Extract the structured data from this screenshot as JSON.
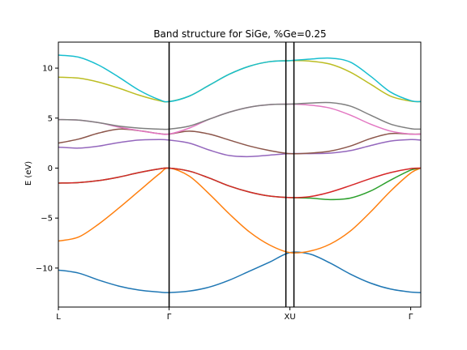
{
  "chart_data": {
    "type": "line",
    "title": "Band structure for SiGe, %Ge=0.25",
    "xlabel": "",
    "ylabel": "E (eV)",
    "ylim": [
      -13.9,
      12.6
    ],
    "yticks": [
      10,
      5,
      0,
      -5,
      -10
    ],
    "ytick_labels": [
      "10",
      "5",
      "0",
      "−5",
      "−10"
    ],
    "x_range": [
      0,
      3.6
    ],
    "kpoints": [
      {
        "label": "L",
        "x": 0
      },
      {
        "label": "Γ",
        "x": 1.1
      },
      {
        "label": "XU",
        "x": 2.3
      },
      {
        "label": "Γ",
        "x": 3.5
      }
    ],
    "vlines": [
      1.1,
      2.26,
      2.34
    ],
    "grid": false,
    "series": [
      {
        "color": "#1f77b4",
        "x": [
          0,
          0.2,
          0.4,
          0.6,
          0.8,
          1.0,
          1.1,
          1.3,
          1.5,
          1.7,
          1.9,
          2.1,
          2.3,
          2.5,
          2.7,
          2.9,
          3.1,
          3.3,
          3.5,
          3.6
        ],
        "y": [
          -10.2,
          -10.5,
          -11.2,
          -11.8,
          -12.2,
          -12.4,
          -12.45,
          -12.3,
          -11.9,
          -11.2,
          -10.3,
          -9.4,
          -8.45,
          -8.6,
          -9.5,
          -10.6,
          -11.5,
          -12.1,
          -12.4,
          -12.45
        ]
      },
      {
        "color": "#ff7f0e",
        "x": [
          0,
          0.2,
          0.4,
          0.6,
          0.8,
          1.0,
          1.1,
          1.3,
          1.5,
          1.7,
          1.9,
          2.1,
          2.3,
          2.5,
          2.7,
          2.9,
          3.1,
          3.3,
          3.5,
          3.6
        ],
        "y": [
          -7.3,
          -6.9,
          -5.6,
          -4.0,
          -2.3,
          -0.6,
          0,
          -0.8,
          -2.6,
          -4.6,
          -6.4,
          -7.7,
          -8.45,
          -8.3,
          -7.6,
          -6.3,
          -4.4,
          -2.3,
          -0.5,
          0
        ]
      },
      {
        "color": "#2ca02c",
        "x": [
          0,
          0.2,
          0.4,
          0.6,
          0.8,
          1.0,
          1.1,
          1.3,
          1.5,
          1.7,
          1.9,
          2.1,
          2.3,
          2.5,
          2.7,
          2.9,
          3.1,
          3.3,
          3.5,
          3.6
        ],
        "y": [
          -1.5,
          -1.45,
          -1.25,
          -0.9,
          -0.45,
          -0.08,
          0,
          -0.3,
          -1.0,
          -1.8,
          -2.4,
          -2.8,
          -2.95,
          -3.0,
          -3.15,
          -3.0,
          -2.3,
          -1.2,
          -0.2,
          0
        ]
      },
      {
        "color": "#d62728",
        "x": [
          0,
          0.2,
          0.4,
          0.6,
          0.8,
          1.0,
          1.1,
          1.3,
          1.5,
          1.7,
          1.9,
          2.1,
          2.3,
          2.5,
          2.7,
          2.9,
          3.1,
          3.3,
          3.5,
          3.6
        ],
        "y": [
          -1.5,
          -1.45,
          -1.25,
          -0.9,
          -0.45,
          -0.08,
          0,
          -0.3,
          -1.0,
          -1.8,
          -2.4,
          -2.8,
          -2.95,
          -2.85,
          -2.4,
          -1.75,
          -1.05,
          -0.45,
          -0.05,
          0
        ]
      },
      {
        "color": "#9467bd",
        "x": [
          0,
          0.2,
          0.4,
          0.6,
          0.8,
          1.0,
          1.1,
          1.3,
          1.5,
          1.7,
          1.9,
          2.1,
          2.3,
          2.5,
          2.7,
          2.9,
          3.1,
          3.3,
          3.5,
          3.6
        ],
        "y": [
          2.1,
          2.0,
          2.2,
          2.55,
          2.8,
          2.85,
          2.8,
          2.5,
          1.8,
          1.25,
          1.15,
          1.3,
          1.45,
          1.45,
          1.5,
          1.75,
          2.25,
          2.7,
          2.85,
          2.8
        ]
      },
      {
        "color": "#8c564b",
        "x": [
          0,
          0.2,
          0.4,
          0.6,
          0.8,
          1.0,
          1.1,
          1.3,
          1.5,
          1.7,
          1.9,
          2.1,
          2.3,
          2.5,
          2.7,
          2.9,
          3.1,
          3.3,
          3.5,
          3.6
        ],
        "y": [
          2.5,
          2.9,
          3.5,
          3.9,
          3.75,
          3.45,
          3.4,
          3.7,
          3.4,
          2.8,
          2.2,
          1.75,
          1.45,
          1.5,
          1.7,
          2.2,
          2.95,
          3.45,
          3.4,
          3.4
        ]
      },
      {
        "color": "#e377c2",
        "x": [
          0,
          0.2,
          0.4,
          0.6,
          0.8,
          1.0,
          1.1,
          1.3,
          1.5,
          1.7,
          1.9,
          2.1,
          2.3,
          2.5,
          2.7,
          2.9,
          3.1,
          3.3,
          3.5,
          3.6
        ],
        "y": [
          4.85,
          4.8,
          4.55,
          4.1,
          3.75,
          3.45,
          3.4,
          4.0,
          4.9,
          5.6,
          6.1,
          6.35,
          6.4,
          6.3,
          6.0,
          5.3,
          4.4,
          3.7,
          3.4,
          3.4
        ]
      },
      {
        "color": "#7f7f7f",
        "x": [
          0,
          0.2,
          0.4,
          0.6,
          0.8,
          1.0,
          1.1,
          1.3,
          1.5,
          1.7,
          1.9,
          2.1,
          2.3,
          2.5,
          2.7,
          2.9,
          3.1,
          3.3,
          3.5,
          3.6
        ],
        "y": [
          4.85,
          4.8,
          4.55,
          4.2,
          4.0,
          3.9,
          3.9,
          4.2,
          4.9,
          5.6,
          6.1,
          6.35,
          6.4,
          6.5,
          6.55,
          6.2,
          5.3,
          4.4,
          3.95,
          3.9
        ]
      },
      {
        "color": "#bcbd22",
        "x": [
          0,
          0.2,
          0.4,
          0.6,
          0.8,
          1.0,
          1.1,
          1.3,
          1.5,
          1.7,
          1.9,
          2.1,
          2.3,
          2.5,
          2.7,
          2.9,
          3.1,
          3.3,
          3.5,
          3.6
        ],
        "y": [
          9.1,
          9.0,
          8.6,
          8.0,
          7.3,
          6.75,
          6.65,
          7.2,
          8.3,
          9.4,
          10.2,
          10.65,
          10.75,
          10.7,
          10.4,
          9.6,
          8.4,
          7.2,
          6.7,
          6.65
        ]
      },
      {
        "color": "#17becf",
        "x": [
          0,
          0.2,
          0.4,
          0.6,
          0.8,
          1.0,
          1.1,
          1.3,
          1.5,
          1.7,
          1.9,
          2.1,
          2.3,
          2.5,
          2.7,
          2.9,
          3.1,
          3.3,
          3.5,
          3.6
        ],
        "y": [
          11.3,
          11.1,
          10.3,
          9.1,
          7.8,
          6.85,
          6.65,
          7.2,
          8.3,
          9.4,
          10.2,
          10.65,
          10.75,
          10.9,
          11.0,
          10.6,
          9.2,
          7.6,
          6.75,
          6.65
        ]
      }
    ]
  }
}
